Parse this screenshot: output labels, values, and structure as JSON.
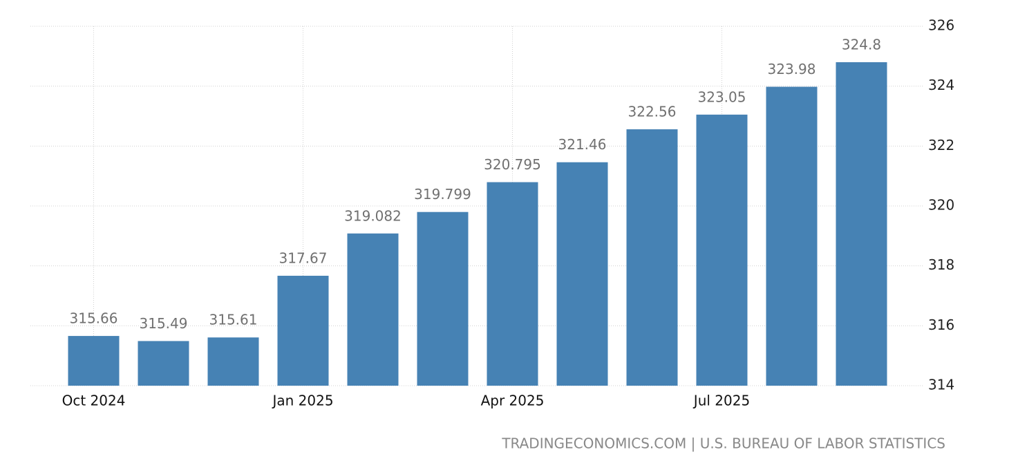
{
  "chart_data": {
    "type": "bar",
    "categories": [
      "Oct 2024",
      null,
      null,
      "Jan 2025",
      null,
      null,
      "Apr 2025",
      null,
      null,
      "Jul 2025",
      null,
      null
    ],
    "values": [
      315.66,
      315.49,
      315.61,
      317.67,
      319.082,
      319.799,
      320.795,
      321.46,
      322.56,
      323.05,
      323.98,
      324.8
    ],
    "color": "#4682b4",
    "ylim": [
      314,
      326
    ],
    "yticks": [
      314,
      316,
      318,
      320,
      322,
      324,
      326
    ],
    "grid": true,
    "source": "TRADINGECONOMICS.COM | U.S. BUREAU OF LABOR STATISTICS"
  }
}
